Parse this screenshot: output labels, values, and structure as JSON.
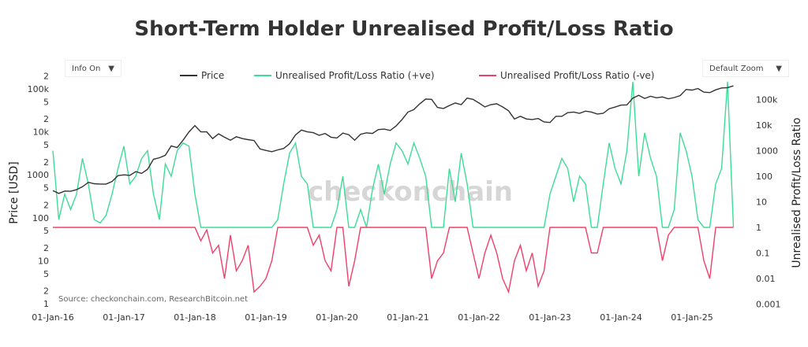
{
  "title": "Short-Term Holder Unrealised Profit/Loss Ratio",
  "controls": {
    "info_label": "Info On",
    "zoom_label": "Default Zoom",
    "arrow": "▼"
  },
  "watermark": "checkonchain",
  "source": "Source: checkonchain.com, ResearchBitcoin.net",
  "chart_data": {
    "type": "line",
    "title": "Short-Term Holder Unrealised Profit/Loss Ratio",
    "x_start": "2016-01",
    "x_step": "month",
    "xticks": [
      "01-Jan-16",
      "01-Jan-17",
      "01-Jan-18",
      "01-Jan-19",
      "01-Jan-20",
      "01-Jan-21",
      "01-Jan-22",
      "01-Jan-23",
      "01-Jan-24",
      "01-Jan-25"
    ],
    "y_left": {
      "label": "Price [USD]",
      "scale": "log",
      "range": [
        1,
        300000
      ],
      "ticks": [
        {
          "v": 1,
          "t": "1"
        },
        {
          "v": 2,
          "t": "2"
        },
        {
          "v": 5,
          "t": "5"
        },
        {
          "v": 10,
          "t": "10"
        },
        {
          "v": 20,
          "t": "2"
        },
        {
          "v": 50,
          "t": "5"
        },
        {
          "v": 100,
          "t": "100"
        },
        {
          "v": 200,
          "t": "2"
        },
        {
          "v": 500,
          "t": "5"
        },
        {
          "v": 1000,
          "t": "1000"
        },
        {
          "v": 2000,
          "t": "2"
        },
        {
          "v": 5000,
          "t": "5"
        },
        {
          "v": 10000,
          "t": "10k"
        },
        {
          "v": 20000,
          "t": "2"
        },
        {
          "v": 50000,
          "t": "5"
        },
        {
          "v": 100000,
          "t": "100k"
        },
        {
          "v": 200000,
          "t": "2"
        }
      ]
    },
    "y_right": {
      "label": "Unrealised Profit/Loss Ratio",
      "scale": "log",
      "range": [
        0.001,
        3000000
      ],
      "ticks": [
        {
          "v": 0.001,
          "t": "0.001"
        },
        {
          "v": 0.01,
          "t": "0.01"
        },
        {
          "v": 0.1,
          "t": "0.1"
        },
        {
          "v": 1,
          "t": "1"
        },
        {
          "v": 10,
          "t": "10"
        },
        {
          "v": 100,
          "t": "100"
        },
        {
          "v": 1000,
          "t": "1000"
        },
        {
          "v": 10000,
          "t": "10k"
        },
        {
          "v": 100000,
          "t": "100k"
        }
      ]
    },
    "legend_position": "top-center",
    "series": [
      {
        "name": "Price",
        "axis": "left",
        "color": "#333333",
        "values": [
          430,
          370,
          420,
          415,
          450,
          530,
          670,
          620,
          610,
          610,
          700,
          960,
          1000,
          970,
          1190,
          1080,
          1350,
          2300,
          2500,
          2850,
          4700,
          4300,
          6400,
          10000,
          14000,
          10000,
          10000,
          7000,
          9000,
          7500,
          6400,
          7700,
          7000,
          6600,
          6300,
          4000,
          3700,
          3450,
          3800,
          4100,
          5300,
          8500,
          11000,
          10000,
          9600,
          8300,
          9200,
          7500,
          7200,
          9400,
          8600,
          6400,
          8800,
          9500,
          9200,
          11300,
          11600,
          10800,
          13700,
          19400,
          29000,
          33000,
          45000,
          58000,
          57000,
          37000,
          35000,
          41000,
          47000,
          43000,
          61000,
          57000,
          47000,
          38000,
          43000,
          45000,
          38000,
          31000,
          19900,
          23000,
          20000,
          19400,
          20500,
          17000,
          16500,
          23000,
          23000,
          28000,
          29000,
          27000,
          30500,
          29000,
          26000,
          27000,
          34500,
          37700,
          42000,
          42500,
          61000,
          71000,
          60000,
          67500,
          62000,
          65000,
          59000,
          63000,
          70000,
          97000,
          94000,
          102000,
          84000,
          82000,
          95000,
          105000,
          107000,
          118000
        ]
      },
      {
        "name": "Unrealised Profit/Loss Ratio (+ve)",
        "axis": "right",
        "color": "#3ddc97",
        "derived": "max(ratio,1)"
      },
      {
        "name": "Unrealised Profit/Loss Ratio (-ve)",
        "axis": "right",
        "color": "#f0406a",
        "derived": "min(ratio,1)"
      }
    ],
    "ratio": [
      1000,
      2,
      20,
      5,
      20,
      500,
      50,
      2,
      1.5,
      3,
      20,
      200,
      1500,
      50,
      100,
      500,
      1000,
      20,
      2,
      300,
      100,
      1000,
      2000,
      1500,
      20,
      0.3,
      0.8,
      0.1,
      0.2,
      0.01,
      0.5,
      0.02,
      0.05,
      0.2,
      0.003,
      0.005,
      0.01,
      0.05,
      2,
      50,
      800,
      2000,
      100,
      50,
      0.2,
      0.5,
      0.05,
      0.02,
      5,
      100,
      0.005,
      0.05,
      5,
      1,
      30,
      300,
      20,
      300,
      2000,
      1000,
      300,
      2000,
      500,
      100,
      0.01,
      0.05,
      0.1,
      200,
      10,
      800,
      50,
      0.1,
      0.01,
      0.1,
      0.5,
      0.1,
      0.01,
      0.003,
      0.05,
      0.2,
      0.02,
      0.1,
      0.005,
      0.02,
      20,
      100,
      500,
      200,
      10,
      100,
      50,
      0.1,
      0.1,
      50,
      2000,
      200,
      50,
      1000,
      500000,
      100,
      5000,
      500,
      100,
      0.05,
      0.5,
      5,
      5000,
      1000,
      100,
      2,
      0.05,
      0.01,
      50,
      200,
      500000,
      1
    ]
  }
}
